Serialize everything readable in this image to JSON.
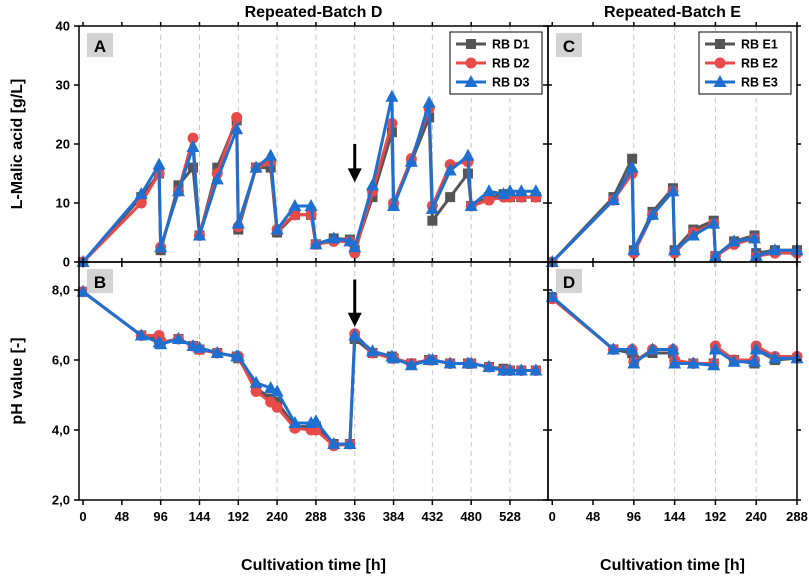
{
  "chart_data": [
    {
      "id": "A",
      "type": "line",
      "panel_label": "A",
      "title": "Repeated-Batch D",
      "ylabel": "L-Malic acid [g/L]",
      "xlabel": "",
      "xlim": [
        -5,
        575
      ],
      "ylim": [
        0,
        40
      ],
      "xticks": [
        0,
        48,
        96,
        144,
        192,
        240,
        288,
        336,
        384,
        432,
        480,
        528
      ],
      "xtick_labels": [
        "",
        "",
        "",
        "",
        "",
        "",
        "",
        "",
        "",
        "",
        "",
        ""
      ],
      "yticks": [
        0,
        10,
        20,
        30,
        40
      ],
      "ytick_labels": [
        "0",
        "10",
        "20",
        "30",
        "40"
      ],
      "vlines": [
        96,
        144,
        192,
        240,
        288,
        336,
        384,
        432,
        480,
        528
      ],
      "annotation_arrow": {
        "x": 336,
        "y_from": 20,
        "y_to": 13.5
      },
      "legend": "top-right",
      "series": [
        {
          "name": "RB D1",
          "color": "#555555",
          "marker": "square",
          "x": [
            0,
            72,
            94,
            96,
            118,
            136,
            144,
            166,
            190,
            192,
            214,
            232,
            240,
            262,
            282,
            288,
            310,
            330,
            336,
            358,
            382,
            384,
            406,
            428,
            432,
            454,
            476,
            480,
            502,
            520,
            528,
            542,
            560
          ],
          "y": [
            0,
            11,
            15,
            2,
            13,
            16,
            4.5,
            16,
            24,
            5.5,
            16,
            16,
            5,
            8,
            8,
            3,
            4,
            3.8,
            2,
            11,
            22,
            9.5,
            17,
            24.5,
            7,
            11,
            15,
            9.5,
            11,
            11.5,
            11,
            11,
            11
          ]
        },
        {
          "name": "RB D2",
          "color": "#e84a4a",
          "marker": "circle",
          "x": [
            0,
            72,
            94,
            96,
            118,
            136,
            144,
            166,
            190,
            192,
            214,
            232,
            240,
            262,
            282,
            288,
            310,
            330,
            336,
            358,
            382,
            384,
            406,
            428,
            432,
            454,
            476,
            480,
            502,
            520,
            528,
            542,
            560
          ],
          "y": [
            0,
            10,
            15,
            2.5,
            12,
            21,
            4.5,
            15,
            24.5,
            6,
            16,
            17,
            5.5,
            8,
            8,
            3,
            3.5,
            3.5,
            1.5,
            12,
            23.5,
            10,
            17.5,
            26,
            9.5,
            16.5,
            17,
            9.5,
            10.5,
            11,
            11,
            11,
            11
          ]
        },
        {
          "name": "RB D3",
          "color": "#1f6fd1",
          "marker": "triangle",
          "x": [
            0,
            72,
            94,
            96,
            118,
            136,
            144,
            166,
            190,
            192,
            214,
            232,
            240,
            262,
            282,
            288,
            310,
            330,
            336,
            358,
            382,
            384,
            406,
            428,
            432,
            454,
            476,
            480,
            502,
            520,
            528,
            542,
            560
          ],
          "y": [
            0,
            11.5,
            16.5,
            2.5,
            12,
            19.5,
            4.5,
            14,
            22.5,
            6.5,
            16,
            18,
            5.5,
            9.5,
            9.5,
            3,
            4,
            3.5,
            2.5,
            13,
            28,
            9.5,
            17,
            27,
            9,
            15.5,
            18,
            9.5,
            12,
            11.5,
            12,
            12,
            12
          ]
        }
      ]
    },
    {
      "id": "B",
      "type": "line",
      "panel_label": "B",
      "title": "",
      "ylabel": "pH value [-]",
      "xlabel": "Cultivation time [h]",
      "xlim": [
        -5,
        575
      ],
      "ylim": [
        2.0,
        8.8
      ],
      "xticks": [
        0,
        48,
        96,
        144,
        192,
        240,
        288,
        336,
        384,
        432,
        480,
        528
      ],
      "xtick_labels": [
        "0",
        "48",
        "96",
        "144",
        "192",
        "240",
        "288",
        "336",
        "384",
        "432",
        "480",
        "528"
      ],
      "yticks": [
        2.0,
        4.0,
        6.0,
        8.0
      ],
      "ytick_labels": [
        "2,0",
        "4,0",
        "6,0",
        "8,0"
      ],
      "vlines": [
        96,
        144,
        192,
        240,
        288,
        336,
        384,
        432,
        480,
        528
      ],
      "annotation_arrow": {
        "x": 336,
        "y_from": 8.3,
        "y_to": 6.95
      },
      "series": [
        {
          "name": "RB D1",
          "color": "#555555",
          "marker": "square",
          "x": [
            0,
            72,
            94,
            96,
            118,
            136,
            144,
            166,
            190,
            192,
            214,
            232,
            240,
            262,
            282,
            288,
            310,
            330,
            336,
            358,
            382,
            384,
            406,
            428,
            432,
            454,
            476,
            480,
            502,
            520,
            528,
            542,
            560
          ],
          "y": [
            7.95,
            6.7,
            6.6,
            6.5,
            6.6,
            6.4,
            6.3,
            6.2,
            6.1,
            6.05,
            5.2,
            4.9,
            4.8,
            4.1,
            4.1,
            4.1,
            3.6,
            3.6,
            6.6,
            6.2,
            6.1,
            6.05,
            5.9,
            6.0,
            6.0,
            5.9,
            5.9,
            5.9,
            5.8,
            5.75,
            5.7,
            5.7,
            5.7
          ]
        },
        {
          "name": "RB D2",
          "color": "#e84a4a",
          "marker": "circle",
          "x": [
            0,
            72,
            94,
            96,
            118,
            136,
            144,
            166,
            190,
            192,
            214,
            232,
            240,
            262,
            282,
            288,
            310,
            330,
            336,
            358,
            382,
            384,
            406,
            428,
            432,
            454,
            476,
            480,
            502,
            520,
            528,
            542,
            560
          ],
          "y": [
            7.95,
            6.7,
            6.7,
            6.5,
            6.6,
            6.4,
            6.3,
            6.2,
            6.1,
            6.1,
            5.1,
            4.8,
            4.65,
            4.05,
            4.0,
            4.0,
            3.55,
            3.6,
            6.75,
            6.2,
            6.05,
            6.05,
            5.9,
            6.0,
            6.0,
            5.9,
            5.9,
            5.9,
            5.8,
            5.7,
            5.7,
            5.7,
            5.7
          ]
        },
        {
          "name": "RB D3",
          "color": "#1f6fd1",
          "marker": "triangle",
          "x": [
            0,
            72,
            94,
            96,
            118,
            136,
            144,
            166,
            190,
            192,
            214,
            232,
            240,
            262,
            282,
            288,
            310,
            330,
            336,
            358,
            382,
            384,
            406,
            428,
            432,
            454,
            476,
            480,
            502,
            520,
            528,
            542,
            560
          ],
          "y": [
            7.95,
            6.7,
            6.5,
            6.45,
            6.6,
            6.4,
            6.35,
            6.2,
            6.1,
            6.1,
            5.35,
            5.2,
            5.1,
            4.2,
            4.2,
            4.25,
            3.6,
            3.6,
            6.7,
            6.25,
            6.1,
            6.05,
            5.85,
            6.0,
            6.0,
            5.9,
            5.9,
            5.9,
            5.8,
            5.7,
            5.7,
            5.7,
            5.7
          ]
        }
      ]
    },
    {
      "id": "C",
      "type": "line",
      "panel_label": "C",
      "title": "Repeated-Batch E",
      "ylabel": "",
      "xlabel": "",
      "xlim": [
        -5,
        288
      ],
      "ylim": [
        0,
        40
      ],
      "xticks": [
        0,
        48,
        96,
        144,
        192,
        240,
        288
      ],
      "xtick_labels": [
        "",
        "",
        "",
        "",
        "",
        "",
        ""
      ],
      "yticks": [
        0,
        10,
        20,
        30,
        40
      ],
      "ytick_labels": [
        "",
        "",
        "",
        "",
        ""
      ],
      "vlines": [
        96,
        144,
        192,
        240
      ],
      "legend": "top-right",
      "series": [
        {
          "name": "RB E1",
          "color": "#555555",
          "marker": "square",
          "x": [
            0,
            72,
            94,
            96,
            118,
            142,
            144,
            166,
            190,
            192,
            214,
            238,
            240,
            262,
            288
          ],
          "y": [
            0,
            11,
            17.5,
            2,
            8.5,
            12.5,
            2,
            5.5,
            7,
            1,
            3.5,
            4.5,
            1.5,
            2,
            2
          ]
        },
        {
          "name": "RB E2",
          "color": "#e84a4a",
          "marker": "circle",
          "x": [
            0,
            72,
            94,
            96,
            118,
            142,
            144,
            166,
            190,
            192,
            214,
            238,
            240,
            262,
            288
          ],
          "y": [
            0,
            10.5,
            15,
            1.5,
            8,
            12,
            1.5,
            5,
            6.5,
            1,
            3,
            4,
            1,
            1.5,
            1.5
          ]
        },
        {
          "name": "RB E3",
          "color": "#1f6fd1",
          "marker": "triangle",
          "x": [
            0,
            72,
            94,
            96,
            118,
            142,
            144,
            166,
            190,
            192,
            214,
            238,
            240,
            262,
            288
          ],
          "y": [
            0,
            10.5,
            16,
            2,
            8,
            12,
            2,
            4.5,
            6.5,
            1,
            3.5,
            4,
            1,
            2,
            2
          ]
        }
      ]
    },
    {
      "id": "D",
      "type": "line",
      "panel_label": "D",
      "title": "",
      "ylabel": "",
      "xlabel": "Cultivation time [h]",
      "xlim": [
        -5,
        288
      ],
      "ylim": [
        2.0,
        8.8
      ],
      "xticks": [
        0,
        48,
        96,
        144,
        192,
        240,
        288
      ],
      "xtick_labels": [
        "0",
        "48",
        "96",
        "144",
        "192",
        "240",
        "288"
      ],
      "yticks": [
        2.0,
        4.0,
        6.0,
        8.0
      ],
      "ytick_labels": [
        "",
        "",
        "",
        ""
      ],
      "vlines": [
        96,
        144,
        192,
        240
      ],
      "series": [
        {
          "name": "RB E1",
          "color": "#555555",
          "marker": "square",
          "x": [
            0,
            72,
            94,
            96,
            118,
            142,
            144,
            166,
            190,
            192,
            214,
            238,
            240,
            262,
            288
          ],
          "y": [
            7.8,
            6.3,
            6.2,
            6.0,
            6.2,
            6.2,
            5.9,
            5.9,
            5.9,
            6.3,
            6.0,
            5.9,
            6.3,
            6.0,
            6.05
          ]
        },
        {
          "name": "RB E2",
          "color": "#e84a4a",
          "marker": "circle",
          "x": [
            0,
            72,
            94,
            96,
            118,
            142,
            144,
            166,
            190,
            192,
            214,
            238,
            240,
            262,
            288
          ],
          "y": [
            7.75,
            6.3,
            6.3,
            5.95,
            6.3,
            6.3,
            6.0,
            5.9,
            5.9,
            6.4,
            6.0,
            6.0,
            6.4,
            6.1,
            6.1
          ]
        },
        {
          "name": "RB E3",
          "color": "#1f6fd1",
          "marker": "triangle",
          "x": [
            0,
            72,
            94,
            96,
            118,
            142,
            144,
            166,
            190,
            192,
            214,
            238,
            240,
            262,
            288
          ],
          "y": [
            7.8,
            6.3,
            6.3,
            5.9,
            6.3,
            6.3,
            5.9,
            5.9,
            5.85,
            6.3,
            5.95,
            5.95,
            6.3,
            6.05,
            6.05
          ]
        }
      ]
    }
  ]
}
